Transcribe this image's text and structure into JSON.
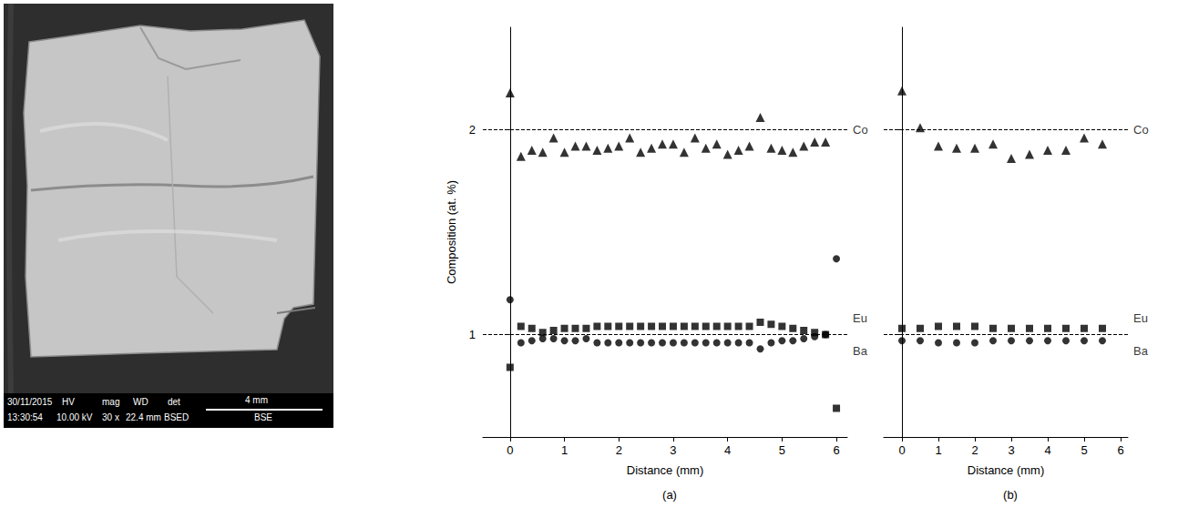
{
  "micrograph": {
    "date": "30/11/2015",
    "time": "13:30:54",
    "fields": [
      {
        "head": "HV",
        "value": "10.00 kV"
      },
      {
        "head": "mag",
        "value": "30 x"
      },
      {
        "head": "WD",
        "value": "22.4 mm"
      },
      {
        "head": "det",
        "value": "BSED"
      }
    ],
    "scale_bar": "4 mm",
    "mode": "BSE"
  },
  "chart_data": [
    {
      "type": "scatter",
      "panel": "(a)",
      "x_label": "Distance (mm)",
      "y_label": "Composition (at. %)",
      "xlim": [
        -0.5,
        6.2
      ],
      "xticks": [
        0,
        1,
        2,
        3,
        4,
        5,
        6
      ],
      "ylim": [
        0.5,
        2.5
      ],
      "yticks": [
        1,
        2
      ],
      "grid": false,
      "reference_lines": [
        2,
        1
      ],
      "line_style": "dashed",
      "annotations": [
        {
          "text": "Co",
          "y": 2
        },
        {
          "text": "Eu",
          "y": 1.08
        },
        {
          "text": "Ba",
          "y": 0.92
        }
      ],
      "series": [
        {
          "name": "Co",
          "marker": "triangle",
          "color": "#000000",
          "x": [
            0,
            0.2,
            0.4,
            0.6,
            0.8,
            1.0,
            1.2,
            1.4,
            1.6,
            1.8,
            2.0,
            2.2,
            2.4,
            2.6,
            2.8,
            3.0,
            3.2,
            3.4,
            3.6,
            3.8,
            4.0,
            4.2,
            4.4,
            4.6,
            4.8,
            5.0,
            5.2,
            5.4,
            5.6,
            5.8
          ],
          "values": [
            2.18,
            1.87,
            1.9,
            1.89,
            1.96,
            1.89,
            1.92,
            1.92,
            1.9,
            1.91,
            1.92,
            1.96,
            1.89,
            1.91,
            1.93,
            1.93,
            1.89,
            1.96,
            1.91,
            1.93,
            1.88,
            1.9,
            1.92,
            2.06,
            1.91,
            1.9,
            1.89,
            1.92,
            1.94,
            1.94
          ]
        },
        {
          "name": "Eu",
          "marker": "square",
          "color": "#000000",
          "x": [
            0,
            0.2,
            0.4,
            0.6,
            0.8,
            1.0,
            1.2,
            1.4,
            1.6,
            1.8,
            2.0,
            2.2,
            2.4,
            2.6,
            2.8,
            3.0,
            3.2,
            3.4,
            3.6,
            3.8,
            4.0,
            4.2,
            4.4,
            4.6,
            4.8,
            5.0,
            5.2,
            5.4,
            5.6,
            5.8,
            6.0
          ],
          "values": [
            0.84,
            1.04,
            1.03,
            1.01,
            1.02,
            1.03,
            1.03,
            1.03,
            1.04,
            1.04,
            1.04,
            1.04,
            1.04,
            1.04,
            1.04,
            1.04,
            1.04,
            1.04,
            1.04,
            1.04,
            1.04,
            1.04,
            1.04,
            1.06,
            1.05,
            1.04,
            1.03,
            1.02,
            1.01,
            1.0,
            0.64
          ]
        },
        {
          "name": "Ba",
          "marker": "circle",
          "color": "#000000",
          "x": [
            0,
            0.2,
            0.4,
            0.6,
            0.8,
            1.0,
            1.2,
            1.4,
            1.6,
            1.8,
            2.0,
            2.2,
            2.4,
            2.6,
            2.8,
            3.0,
            3.2,
            3.4,
            3.6,
            3.8,
            4.0,
            4.2,
            4.4,
            4.6,
            4.8,
            5.0,
            5.2,
            5.4,
            5.6,
            5.8,
            6.0
          ],
          "values": [
            1.17,
            0.96,
            0.97,
            0.98,
            0.98,
            0.97,
            0.97,
            0.98,
            0.96,
            0.96,
            0.96,
            0.96,
            0.96,
            0.96,
            0.96,
            0.96,
            0.96,
            0.96,
            0.96,
            0.96,
            0.96,
            0.96,
            0.96,
            0.93,
            0.96,
            0.97,
            0.97,
            0.98,
            0.99,
            1.0,
            1.37
          ]
        }
      ]
    },
    {
      "type": "scatter",
      "panel": "(b)",
      "x_label": "Distance (mm)",
      "xlim": [
        -0.5,
        6.2
      ],
      "xticks": [
        0,
        1,
        2,
        3,
        4,
        5,
        6
      ],
      "ylim": [
        0.5,
        2.5
      ],
      "yticks": [
        1,
        2
      ],
      "grid": false,
      "tick_labels": "x",
      "reference_lines": [
        2,
        1
      ],
      "line_style": "dashed",
      "annotations": [
        {
          "text": "Co",
          "y": 2
        },
        {
          "text": "Eu",
          "y": 1.08
        },
        {
          "text": "Ba",
          "y": 0.92
        }
      ],
      "series": [
        {
          "name": "Co",
          "marker": "triangle",
          "color": "#000000",
          "x": [
            0,
            0.5,
            1.0,
            1.5,
            2.0,
            2.5,
            3.0,
            3.5,
            4.0,
            4.5,
            5.0,
            5.5
          ],
          "values": [
            2.19,
            2.01,
            1.92,
            1.91,
            1.91,
            1.93,
            1.86,
            1.88,
            1.9,
            1.9,
            1.96,
            1.93
          ]
        },
        {
          "name": "Eu",
          "marker": "square",
          "color": "#000000",
          "x": [
            0,
            0.5,
            1.0,
            1.5,
            2.0,
            2.5,
            3.0,
            3.5,
            4.0,
            4.5,
            5.0,
            5.5
          ],
          "values": [
            1.03,
            1.03,
            1.04,
            1.04,
            1.04,
            1.03,
            1.03,
            1.03,
            1.03,
            1.03,
            1.03,
            1.03
          ]
        },
        {
          "name": "Ba",
          "marker": "circle",
          "color": "#000000",
          "x": [
            0,
            0.5,
            1.0,
            1.5,
            2.0,
            2.5,
            3.0,
            3.5,
            4.0,
            4.5,
            5.0,
            5.5
          ],
          "values": [
            0.97,
            0.97,
            0.96,
            0.96,
            0.96,
            0.97,
            0.97,
            0.97,
            0.97,
            0.97,
            0.97,
            0.97
          ]
        }
      ]
    }
  ]
}
